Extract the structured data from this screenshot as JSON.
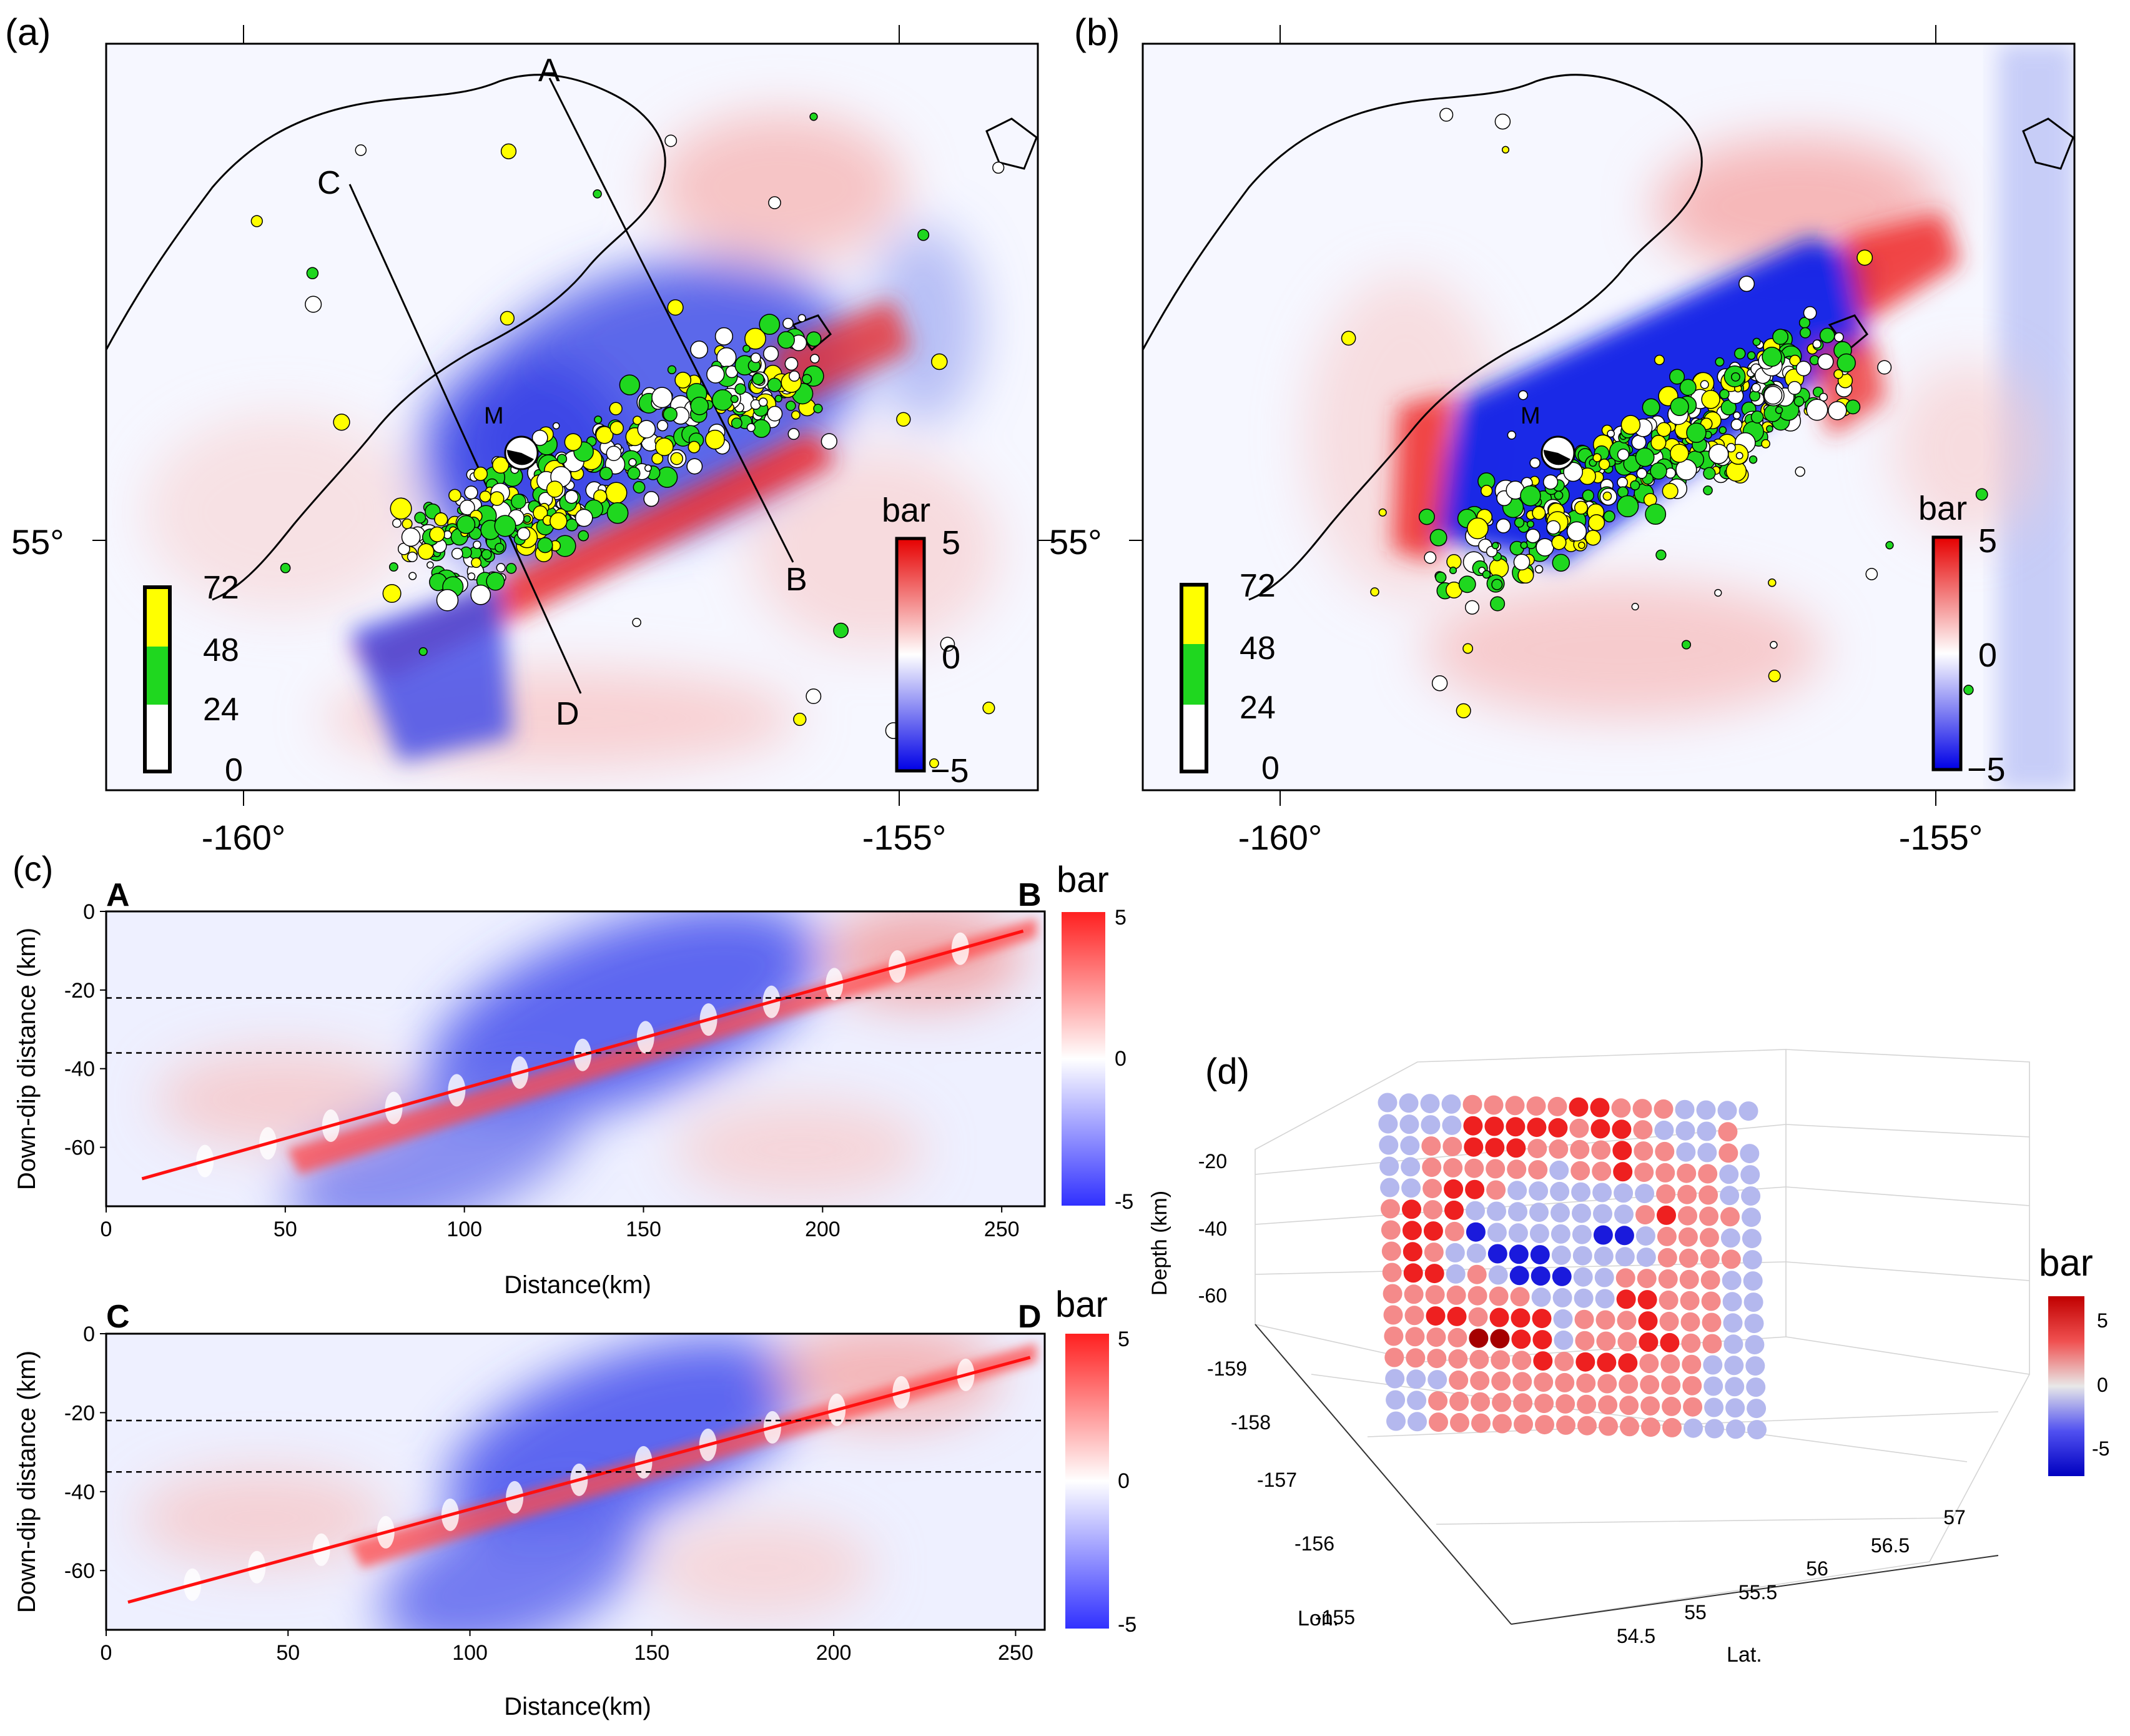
{
  "chart_data": [
    {
      "panel": "(a)",
      "type": "map",
      "profile_labels": [
        "A",
        "B",
        "C",
        "D"
      ],
      "event_label": "M",
      "lat_label": "55°",
      "lon_ticks": [
        "-160°",
        "-155°"
      ],
      "x_range": [
        -161.0,
        -154.1
      ],
      "stress_colorbar": {
        "title": "bar",
        "ticks": [
          "5",
          "0",
          "−5"
        ],
        "range": [
          -5,
          5
        ]
      },
      "time_colorbar": {
        "ticks": [
          "72",
          "48",
          "24",
          "0"
        ],
        "colors": [
          "#ffff00",
          "#1fd71f",
          "#ffffff"
        ]
      }
    },
    {
      "panel": "(b)",
      "type": "map",
      "event_label": "M",
      "lat_label": "55°",
      "lon_ticks": [
        "-160°",
        "-155°"
      ],
      "x_range": [
        -161.0,
        -154.1
      ],
      "stress_colorbar": {
        "title": "bar",
        "ticks": [
          "5",
          "0",
          "−5"
        ],
        "range": [
          -5,
          5
        ]
      },
      "time_colorbar": {
        "ticks": [
          "72",
          "48",
          "24",
          "0"
        ],
        "colors": [
          "#ffff00",
          "#1fd71f",
          "#ffffff"
        ]
      }
    },
    {
      "panel": "(c)",
      "type": "heatmap",
      "profiles": [
        {
          "start_label": "A",
          "end_label": "B",
          "xlabel": "Distance(km)",
          "ylabel": "Down-dip distance (km)",
          "xlim": [
            0,
            262
          ],
          "ylim": [
            -75,
            0
          ],
          "xticks": [
            0,
            50,
            100,
            150,
            200,
            250
          ],
          "yticks": [
            0,
            -20,
            -40,
            -60
          ],
          "dashed_depths": [
            -22,
            -36
          ],
          "fault_trace": [
            [
              10,
              -68
            ],
            [
              256,
              -5
            ]
          ],
          "colorbar": {
            "title": "bar",
            "ticks": [
              "5",
              "0",
              "-5"
            ],
            "range": [
              -5,
              5
            ]
          }
        },
        {
          "start_label": "C",
          "end_label": "D",
          "xlabel": "Distance(km)",
          "ylabel": "Down-dip distance (km)",
          "xlim": [
            0,
            258
          ],
          "ylim": [
            -75,
            0
          ],
          "xticks": [
            0,
            50,
            100,
            150,
            200,
            250
          ],
          "yticks": [
            0,
            -20,
            -40,
            -60
          ],
          "dashed_depths": [
            -22,
            -35
          ],
          "fault_trace": [
            [
              6,
              -68
            ],
            [
              254,
              -6
            ]
          ],
          "colorbar": {
            "title": "bar",
            "ticks": [
              "5",
              "0",
              "-5"
            ],
            "range": [
              -5,
              5
            ]
          }
        }
      ]
    },
    {
      "panel": "(d)",
      "type": "scatter",
      "projection": "3d",
      "zlabel": "Depth (km)",
      "xlabel": "Lon.",
      "ylabel": "Lat.",
      "zticks": [
        "-20",
        "-40",
        "-60"
      ],
      "lon_ticks": [
        "-159",
        "-158",
        "-157",
        "-156",
        "-155"
      ],
      "lat_ticks": [
        "54.5",
        "55",
        "55.5",
        "56",
        "56.5",
        "57"
      ],
      "colorbar": {
        "title": "bar",
        "ticks": [
          "5",
          "0",
          "-5"
        ],
        "range": [
          -6,
          6
        ]
      },
      "grid_values": [
        "LLLLMMMMMHHMMMLLLL",
        "LLLLHHHHHMHHMLLLM",
        "LLMMHHHMMMMHMMLLML",
        "LLMMMMMMLMMHMMMMLL",
        "LLMHHMLLLLLLLMMMLL",
        "MHMHLLLLLLLLMHMMML",
        "MHHMBLLLLLBBLMMMLL",
        "MHMLLBBBLLLLLMMMML",
        "MHHLMLBBBLLMMMMMLL",
        "MMMMMMMLLLLHHMMMLL",
        "MMHHMHHHLMMMHMMMLL",
        "MMMMDDHHLMMMHHMMLL",
        "MMMMMMMHMHHHMMMLLL",
        "LLLMMMMMMMMMMMMLLL",
        "LLMMMMMMMMMMMMMLLL",
        "LLMMMMMMMMMMMMLLLL"
      ]
    }
  ]
}
